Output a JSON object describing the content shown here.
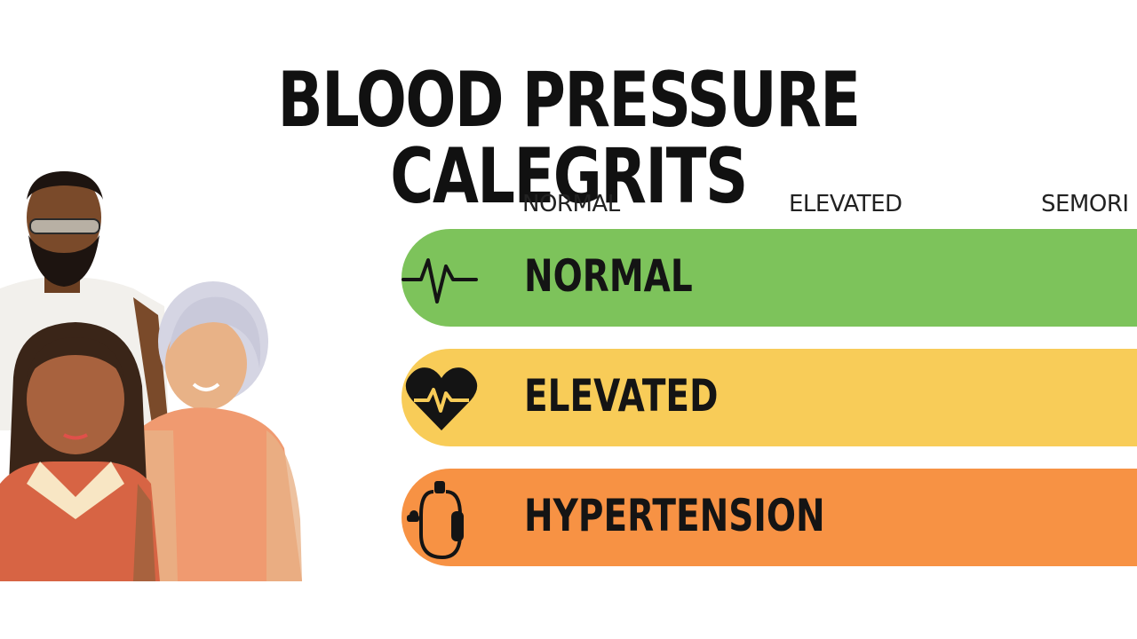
{
  "title": "BLOOD PRESSURE CALEGRITS",
  "column_labels": [
    "NORMAL",
    "ELEVATED",
    "SEMORI"
  ],
  "categories": [
    {
      "label": "NORMAL",
      "icon": "heartbeat-line-icon",
      "color": "#7dc35b"
    },
    {
      "label": "ELEVATED",
      "icon": "heart-pulse-icon",
      "color": "#f8cc58"
    },
    {
      "label": "HYPERTENSION",
      "icon": "blood-pressure-cuff-icon",
      "color": "#f79244"
    }
  ],
  "illustration": "group-of-people"
}
